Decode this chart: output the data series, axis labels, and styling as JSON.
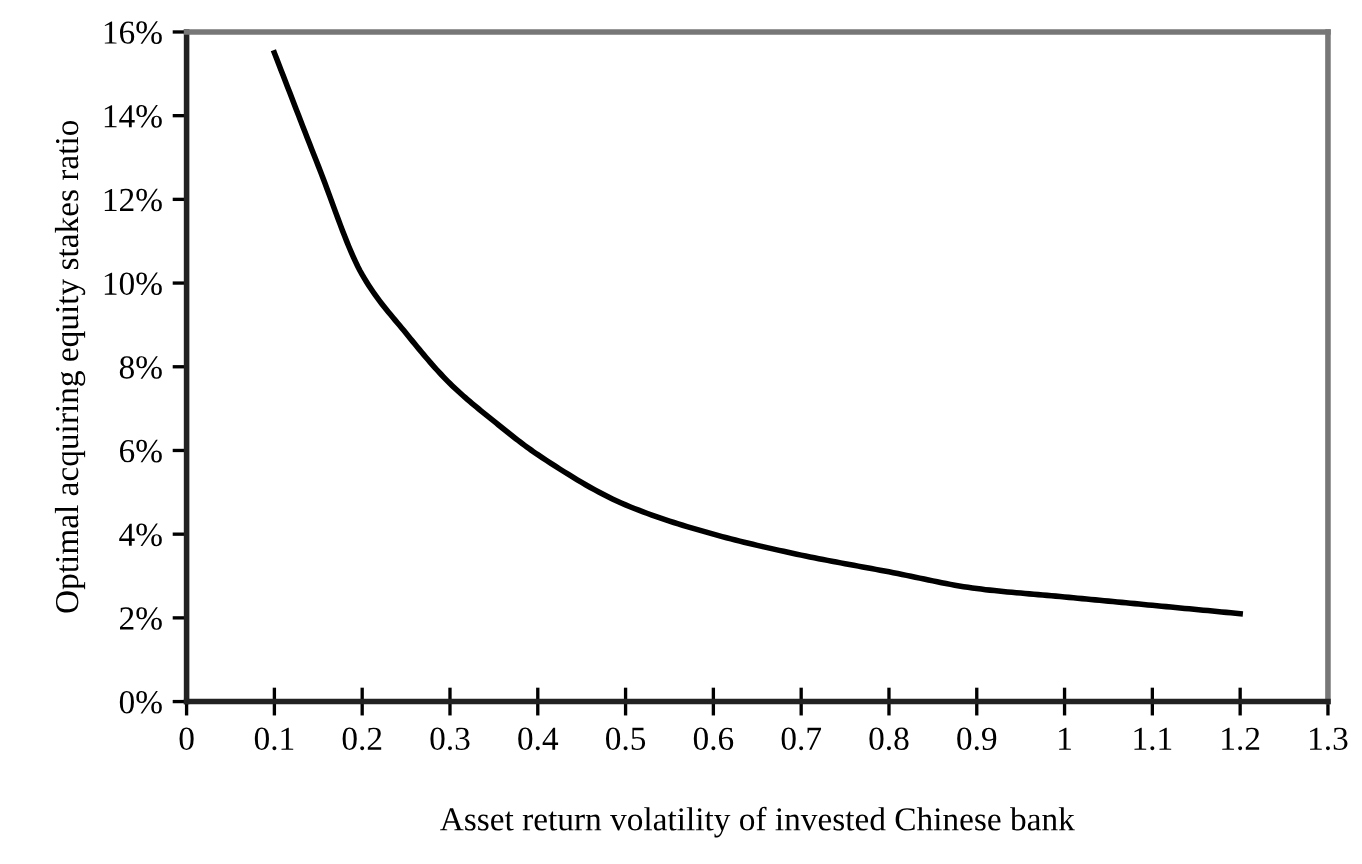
{
  "chart_data": {
    "type": "line",
    "xlabel": "Asset return volatility of invested Chinese bank",
    "ylabel": "Optimal acquiring equity stakes ratio",
    "x": [
      0.1,
      0.15,
      0.2,
      0.25,
      0.3,
      0.35,
      0.4,
      0.5,
      0.6,
      0.7,
      0.8,
      0.9,
      1.0,
      1.1,
      1.2
    ],
    "series": [
      {
        "color": "#000000",
        "values": [
          15.5,
          12.8,
          10.2,
          8.8,
          7.6,
          6.7,
          5.9,
          4.7,
          4.0,
          3.5,
          3.1,
          2.7,
          2.5,
          2.3,
          2.1
        ]
      }
    ],
    "xlim": [
      0,
      1.3
    ],
    "xticks": [
      0,
      0.1,
      0.2,
      0.3,
      0.4,
      0.5,
      0.6,
      0.7,
      0.8,
      0.9,
      1,
      1.1,
      1.2,
      1.3
    ],
    "ylim": [
      0,
      16
    ],
    "yticks": [
      {
        "value": 0,
        "label": "0%"
      },
      {
        "value": 2,
        "label": "2%"
      },
      {
        "value": 4,
        "label": "4%"
      },
      {
        "value": 6,
        "label": "6%"
      },
      {
        "value": 8,
        "label": "8%"
      },
      {
        "value": 10,
        "label": "10%"
      },
      {
        "value": 12,
        "label": "12%"
      },
      {
        "value": 14,
        "label": "14%"
      },
      {
        "value": 16,
        "label": "16%"
      }
    ],
    "grid": false,
    "marker": "none",
    "line_style": "solid"
  }
}
